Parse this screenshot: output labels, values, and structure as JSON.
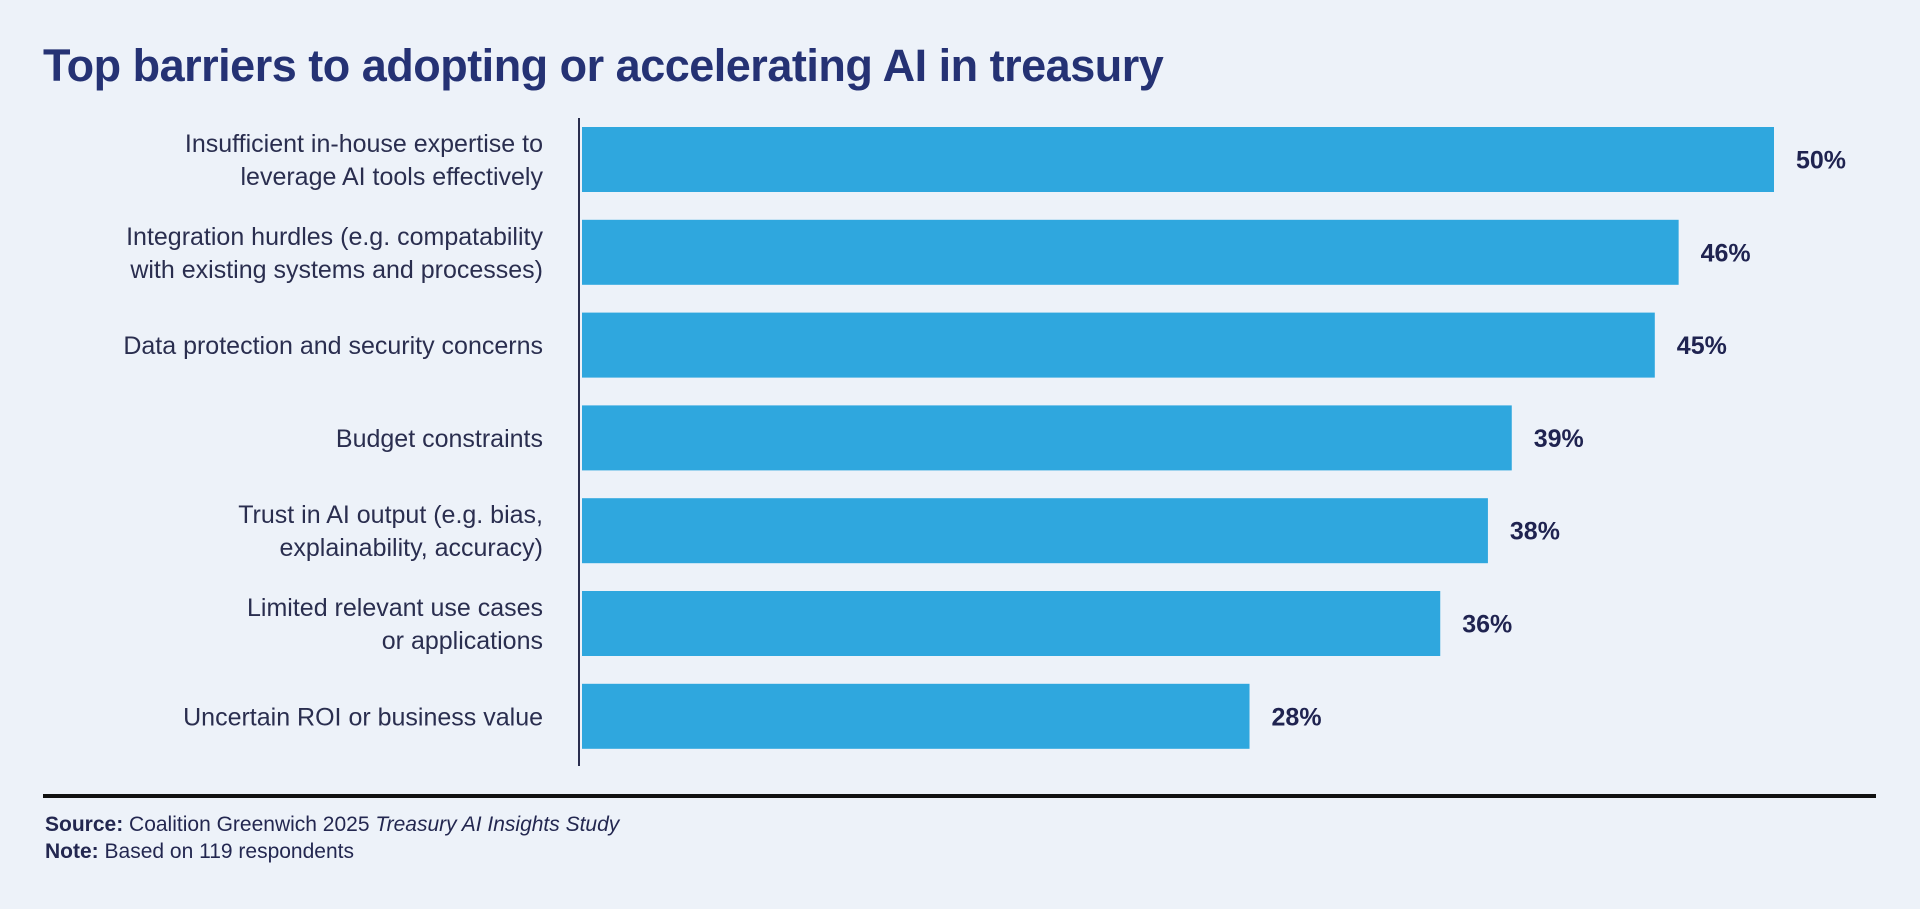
{
  "chart_data": {
    "type": "bar",
    "orientation": "horizontal",
    "title": "Top barriers to adopting or accelerating AI in treasury",
    "categories": [
      [
        "Insufficient in-house expertise to",
        "leverage AI tools effectively"
      ],
      [
        "Integration hurdles (e.g. compatability",
        "with existing systems and processes)"
      ],
      [
        "Data protection and security concerns"
      ],
      [
        "Budget constraints"
      ],
      [
        "Trust in AI output (e.g. bias,",
        "explainability, accuracy)"
      ],
      [
        "Limited relevant use cases",
        "or applications"
      ],
      [
        "Uncertain ROI or business value"
      ]
    ],
    "values": [
      50,
      46,
      45,
      39,
      38,
      36,
      28
    ],
    "value_labels": [
      "50%",
      "46%",
      "45%",
      "39%",
      "38%",
      "36%",
      "28%"
    ],
    "unit": "%",
    "xlim": [
      0,
      50
    ],
    "grid": false,
    "bar_color": "#2fa7de"
  },
  "footer": {
    "source_label": "Source:",
    "source_text": "Coalition Greenwich 2025",
    "source_italic": "Treasury AI Insights Study",
    "note_label": "Note:",
    "note_text": "Based on 119 respondents"
  }
}
